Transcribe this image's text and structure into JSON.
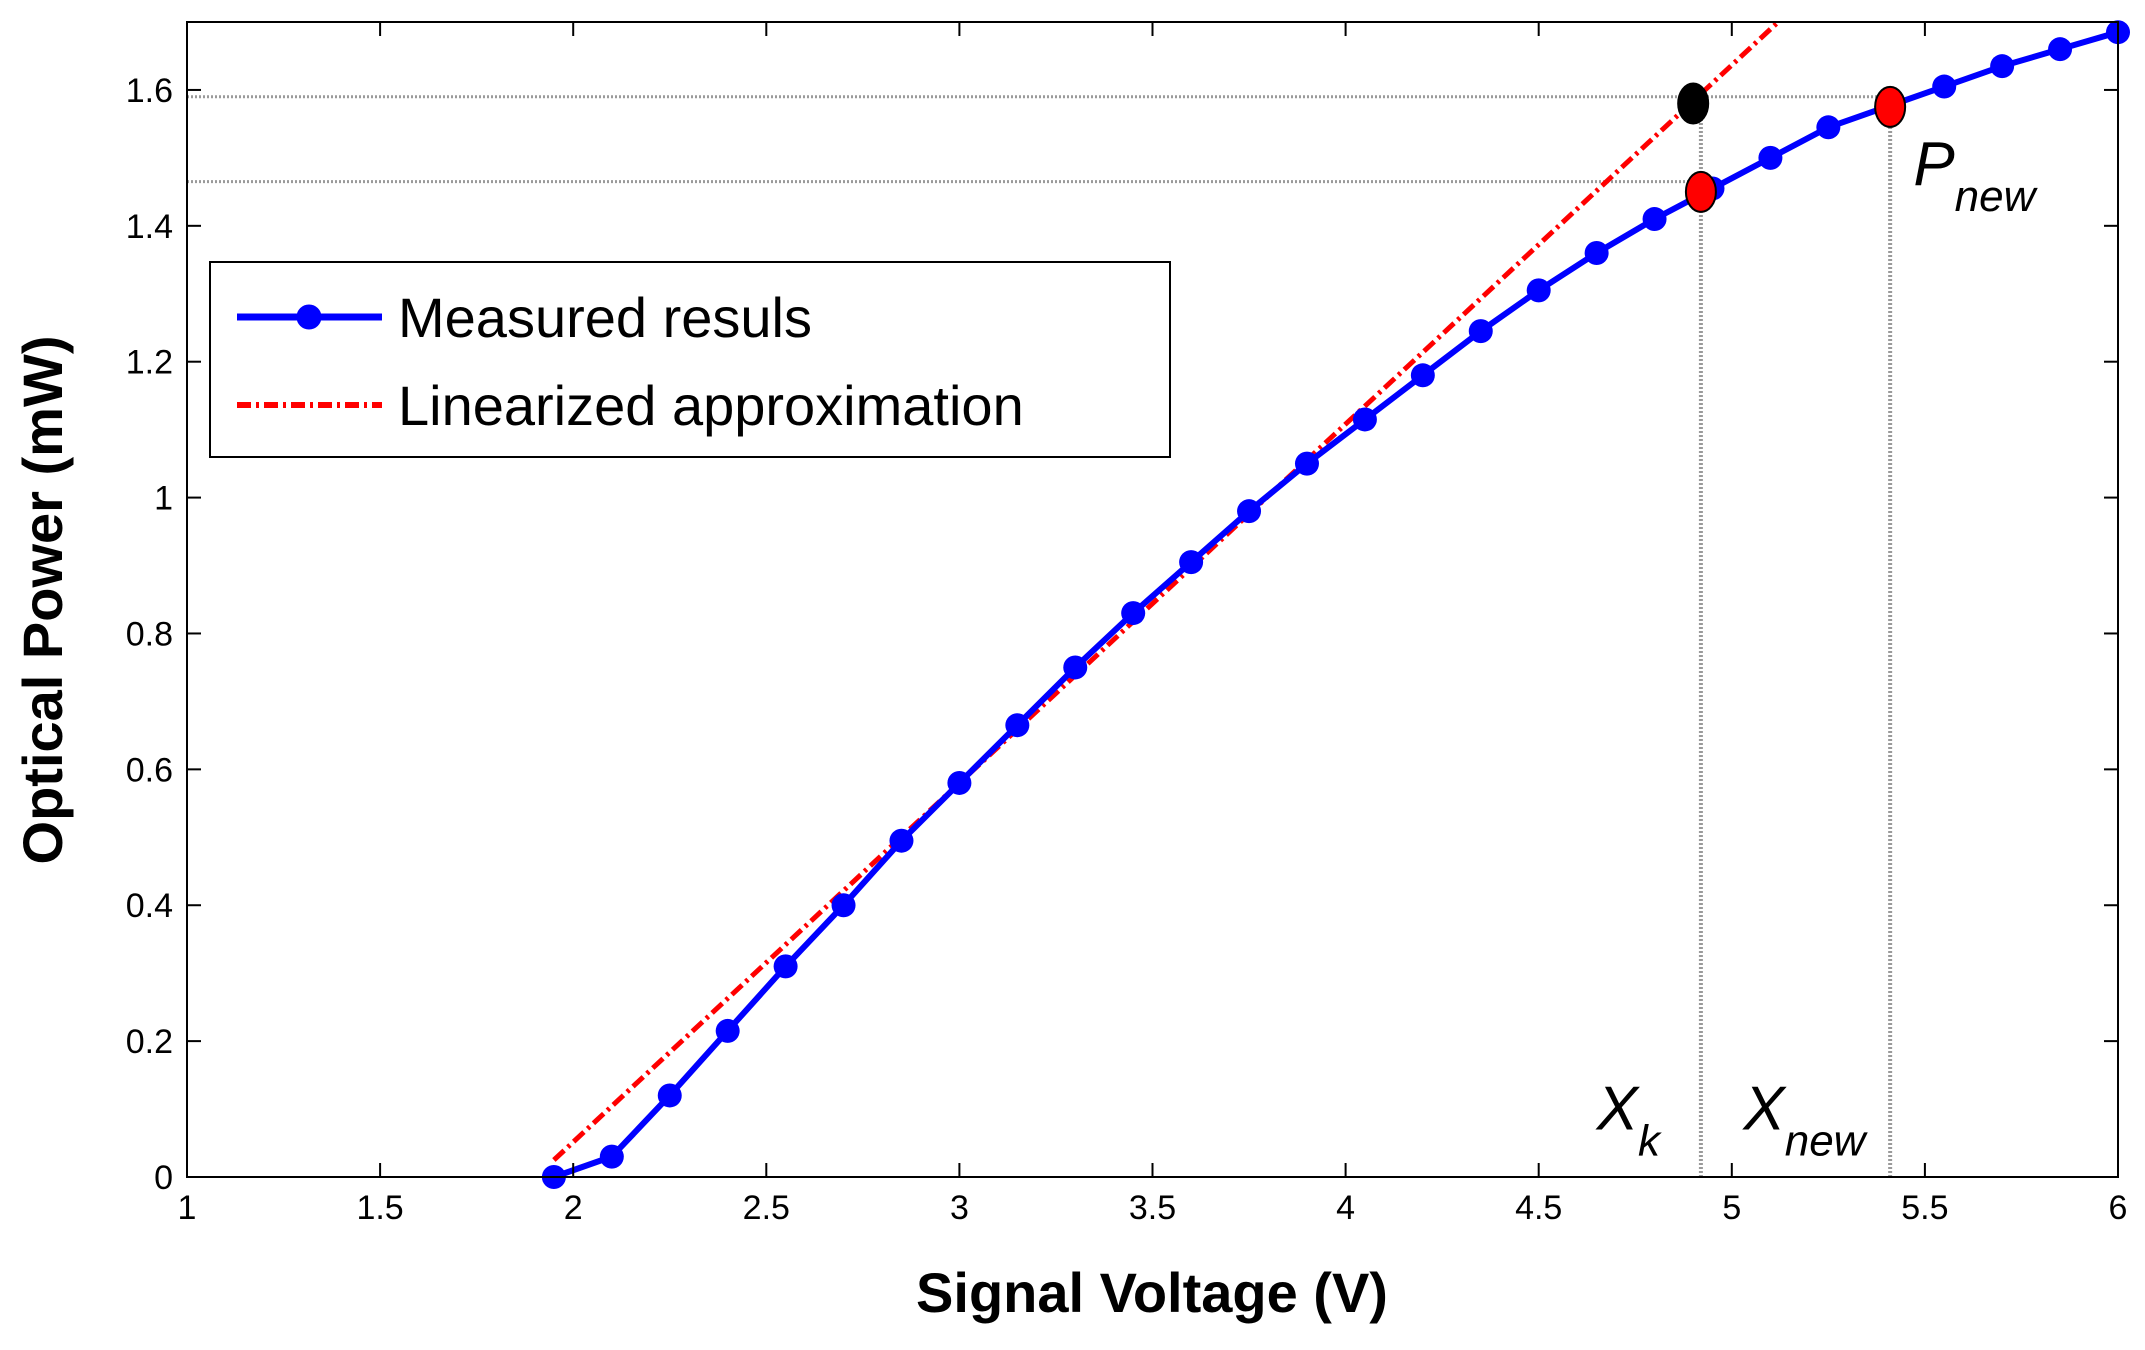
{
  "chart_data": {
    "type": "line",
    "xlabel": "Signal Voltage (V)",
    "ylabel": "Optical Power (mW)",
    "xlim": [
      1,
      6
    ],
    "ylim": [
      0,
      1.7
    ],
    "xticks": [
      1,
      1.5,
      2,
      2.5,
      3,
      3.5,
      4,
      4.5,
      5,
      5.5,
      6
    ],
    "xtick_labels": [
      "1",
      "1.5",
      "2",
      "2.5",
      "3",
      "3.5",
      "4",
      "4.5",
      "5",
      "5.5",
      "6"
    ],
    "yticks": [
      0,
      0.2,
      0.4,
      0.6,
      0.8,
      1.0,
      1.2,
      1.4,
      1.6
    ],
    "ytick_labels": [
      "0",
      "0.2",
      "0.4",
      "0.6",
      "0.8",
      "1",
      "1.2",
      "1.4",
      "1.6"
    ],
    "grid": false,
    "legend_position": "upper-left",
    "series": [
      {
        "name": "Measured resuls",
        "color": "#0000ff",
        "style": "solid-markers",
        "x": [
          1.95,
          2.1,
          2.25,
          2.4,
          2.55,
          2.7,
          2.85,
          3.0,
          3.15,
          3.3,
          3.45,
          3.6,
          3.75,
          3.9,
          4.05,
          4.2,
          4.35,
          4.5,
          4.65,
          4.8,
          4.95,
          5.1,
          5.25,
          5.4,
          5.55,
          5.7,
          5.85,
          6.0
        ],
        "y": [
          0.0,
          0.03,
          0.12,
          0.215,
          0.31,
          0.4,
          0.495,
          0.58,
          0.665,
          0.75,
          0.83,
          0.905,
          0.98,
          1.05,
          1.115,
          1.18,
          1.245,
          1.305,
          1.36,
          1.41,
          1.455,
          1.5,
          1.545,
          1.575,
          1.605,
          1.635,
          1.66,
          1.685
        ]
      },
      {
        "name": "Linearized approximation",
        "color": "#ff0000",
        "style": "dash-dot",
        "x": [
          1.95,
          5.12
        ],
        "y": [
          0.025,
          1.7
        ]
      }
    ],
    "markers": [
      {
        "label": "black point",
        "x": 4.9,
        "y": 1.58,
        "color": "#000000"
      },
      {
        "label": "red point lower",
        "x": 4.92,
        "y": 1.45,
        "color": "#ff0000"
      },
      {
        "label": "red point upper",
        "x": 5.41,
        "y": 1.575,
        "color": "#ff0000"
      }
    ],
    "reference_lines": {
      "horizontal": [
        {
          "y": 1.59,
          "x_to": 5.41
        },
        {
          "y": 1.465,
          "x_to": 4.92
        }
      ],
      "vertical": [
        {
          "x": 4.92,
          "y_from": 0,
          "y_to": 1.58
        },
        {
          "x": 5.41,
          "y_from": 0,
          "y_to": 1.575
        }
      ]
    },
    "annotations": [
      {
        "main": "X",
        "sub": "k",
        "x": 4.65,
        "y": 0.07
      },
      {
        "main": "X",
        "sub": "new",
        "x": 5.03,
        "y": 0.07
      },
      {
        "main": "P",
        "sub": "new",
        "x": 5.47,
        "y": 1.46
      }
    ]
  }
}
